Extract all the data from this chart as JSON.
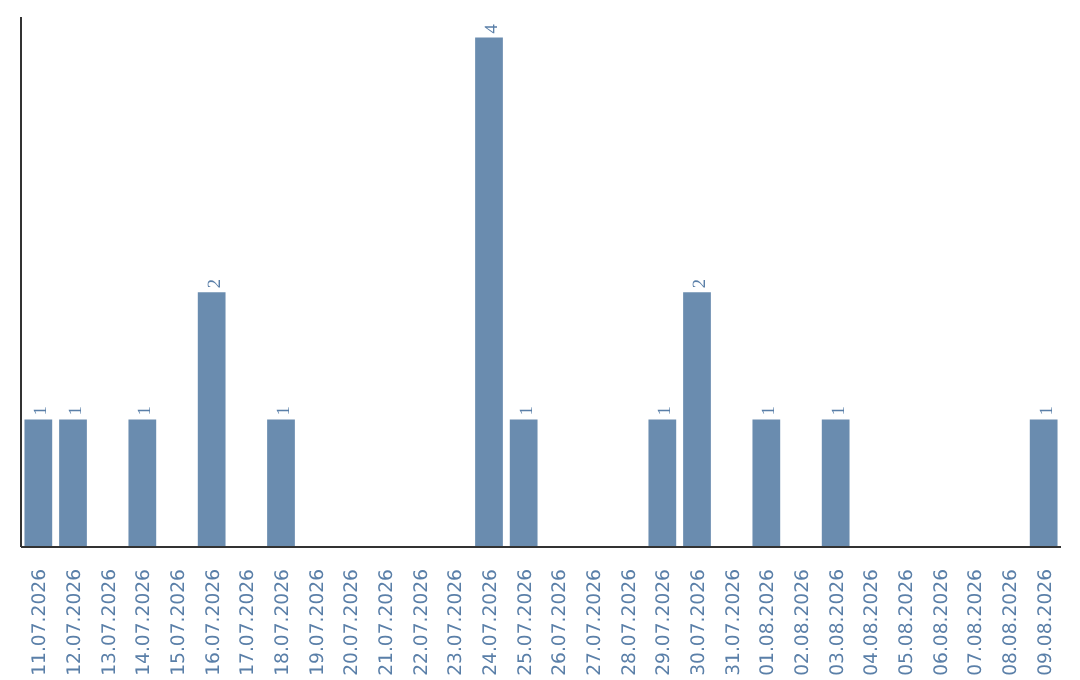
{
  "chart_data": {
    "type": "bar",
    "categories": [
      "11.07.2026",
      "12.07.2026",
      "13.07.2026",
      "14.07.2026",
      "15.07.2026",
      "16.07.2026",
      "17.07.2026",
      "18.07.2026",
      "19.07.2026",
      "20.07.2026",
      "21.07.2026",
      "22.07.2026",
      "23.07.2026",
      "24.07.2026",
      "25.07.2026",
      "26.07.2026",
      "27.07.2026",
      "28.07.2026",
      "29.07.2026",
      "30.07.2026",
      "31.07.2026",
      "01.08.2026",
      "02.08.2026",
      "03.08.2026",
      "04.08.2026",
      "05.08.2026",
      "06.08.2026",
      "07.08.2026",
      "08.08.2026",
      "09.08.2026"
    ],
    "values": [
      1,
      1,
      0,
      1,
      0,
      2,
      0,
      1,
      0,
      0,
      0,
      0,
      0,
      4,
      1,
      0,
      0,
      0,
      1,
      2,
      0,
      1,
      0,
      1,
      0,
      0,
      0,
      0,
      0,
      1
    ],
    "color": "#6a8caf",
    "value_labels": [
      "1",
      "1",
      null,
      "1",
      null,
      "2",
      null,
      "1",
      null,
      null,
      null,
      null,
      null,
      "4",
      "1",
      null,
      null,
      null,
      "1",
      "2",
      null,
      "1",
      null,
      "1",
      null,
      null,
      null,
      null,
      null,
      "1"
    ],
    "grid": false,
    "tick_labels": "x"
  }
}
